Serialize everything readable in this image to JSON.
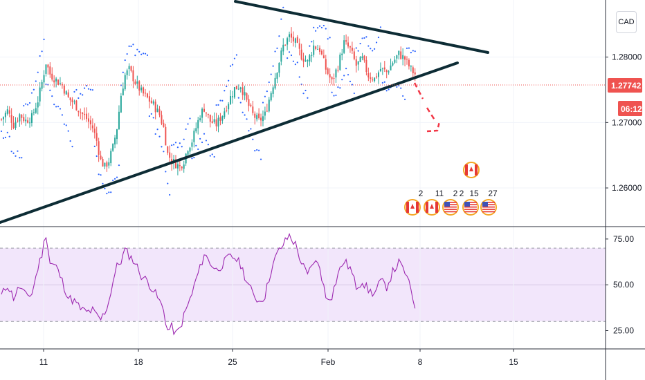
{
  "currency_button": "CAD",
  "price_axis": {
    "ticks": [
      "1.28000",
      "1.27000",
      "1.26000"
    ],
    "current_price": "1.27742",
    "countdown": "06:12"
  },
  "rsi_axis": {
    "ticks": [
      "75.00",
      "50.00",
      "25.00"
    ]
  },
  "time_axis": {
    "ticks": [
      "11",
      "18",
      "25",
      "Feb",
      "8",
      "15"
    ]
  },
  "event_labels": [
    "2",
    "11",
    "2",
    "2",
    "15",
    "27"
  ],
  "colors": {
    "up": "#26a69a",
    "down": "#ef5350",
    "trendline": "#0d2c35",
    "psar": "#2962ff",
    "rsi_line": "#9c27b0",
    "rsi_band": "#f2e6fb",
    "price_badge": "#ef5350",
    "annotation": "#f23645"
  },
  "chart_data": [
    {
      "type": "candlestick",
      "title": "",
      "x_ticks": [
        "11",
        "18",
        "25",
        "Feb",
        "8",
        "15"
      ],
      "y_ticks": [
        1.26,
        1.27,
        1.28
      ],
      "ylim": [
        1.2543,
        1.2882
      ],
      "last_price": 1.27742,
      "close_path": [
        [
          0,
          1.2705
        ],
        [
          3,
          1.2718
        ],
        [
          6,
          1.2697
        ],
        [
          9,
          1.2712
        ],
        [
          12,
          1.2703
        ],
        [
          15,
          1.2708
        ],
        [
          18,
          1.2734
        ],
        [
          20,
          1.2761
        ],
        [
          22,
          1.2792
        ],
        [
          24,
          1.2774
        ],
        [
          27,
          1.2765
        ],
        [
          30,
          1.2757
        ],
        [
          33,
          1.2737
        ],
        [
          36,
          1.2729
        ],
        [
          39,
          1.2716
        ],
        [
          42,
          1.2706
        ],
        [
          45,
          1.2692
        ],
        [
          47,
          1.2672
        ],
        [
          49,
          1.2642
        ],
        [
          51,
          1.2632
        ],
        [
          53,
          1.2642
        ],
        [
          55,
          1.2662
        ],
        [
          57,
          1.2692
        ],
        [
          59,
          1.2742
        ],
        [
          61,
          1.2772
        ],
        [
          63,
          1.2781
        ],
        [
          66,
          1.2762
        ],
        [
          69,
          1.2747
        ],
        [
          72,
          1.2737
        ],
        [
          75,
          1.2727
        ],
        [
          78,
          1.2712
        ],
        [
          80,
          1.2692
        ],
        [
          82,
          1.2652
        ],
        [
          84,
          1.2642
        ],
        [
          86,
          1.2637
        ],
        [
          88,
          1.2632
        ],
        [
          90,
          1.2642
        ],
        [
          92,
          1.2662
        ],
        [
          94,
          1.2672
        ],
        [
          96,
          1.2692
        ],
        [
          98,
          1.2712
        ],
        [
          100,
          1.2722
        ],
        [
          103,
          1.2702
        ],
        [
          106,
          1.2697
        ],
        [
          109,
          1.2712
        ],
        [
          112,
          1.2732
        ],
        [
          115,
          1.2752
        ],
        [
          118,
          1.2757
        ],
        [
          121,
          1.2732
        ],
        [
          124,
          1.2712
        ],
        [
          127,
          1.2702
        ],
        [
          130,
          1.2712
        ],
        [
          133,
          1.2747
        ],
        [
          136,
          1.2782
        ],
        [
          139,
          1.2817
        ],
        [
          142,
          1.2832
        ],
        [
          145,
          1.2822
        ],
        [
          148,
          1.2802
        ],
        [
          151,
          1.2792
        ],
        [
          154,
          1.2817
        ],
        [
          157,
          1.2812
        ],
        [
          160,
          1.2782
        ],
        [
          163,
          1.2762
        ],
        [
          166,
          1.2787
        ],
        [
          169,
          1.2822
        ],
        [
          172,
          1.2812
        ],
        [
          175,
          1.2787
        ],
        [
          178,
          1.2797
        ],
        [
          181,
          1.2772
        ],
        [
          184,
          1.2767
        ],
        [
          187,
          1.2782
        ],
        [
          190,
          1.2777
        ],
        [
          193,
          1.2792
        ],
        [
          196,
          1.2805
        ],
        [
          199,
          1.2797
        ],
        [
          202,
          1.2781
        ],
        [
          204,
          1.2774
        ]
      ]
    },
    {
      "type": "line",
      "title": "",
      "y_ticks": [
        25,
        50,
        75
      ],
      "ylim": [
        15,
        81
      ],
      "band": [
        30,
        70
      ],
      "midline": 50,
      "series": [
        {
          "values": [
            [
              0,
              44
            ],
            [
              3,
              50
            ],
            [
              6,
              43
            ],
            [
              9,
              49
            ],
            [
              12,
              44
            ],
            [
              15,
              45
            ],
            [
              18,
              59
            ],
            [
              20,
              67
            ],
            [
              22,
              78
            ],
            [
              24,
              62
            ],
            [
              27,
              60
            ],
            [
              30,
              52
            ],
            [
              33,
              43
            ],
            [
              36,
              41
            ],
            [
              39,
              37
            ],
            [
              42,
              35
            ],
            [
              45,
              36
            ],
            [
              47,
              33
            ],
            [
              49,
              31
            ],
            [
              51,
              35
            ],
            [
              53,
              41
            ],
            [
              55,
              52
            ],
            [
              57,
              60
            ],
            [
              59,
              63
            ],
            [
              61,
              69
            ],
            [
              63,
              66
            ],
            [
              66,
              62
            ],
            [
              69,
              55
            ],
            [
              72,
              52
            ],
            [
              75,
              47
            ],
            [
              78,
              41
            ],
            [
              80,
              36
            ],
            [
              82,
              25
            ],
            [
              84,
              27
            ],
            [
              86,
              23
            ],
            [
              88,
              26
            ],
            [
              90,
              33
            ],
            [
              92,
              39
            ],
            [
              94,
              45
            ],
            [
              96,
              53
            ],
            [
              98,
              59
            ],
            [
              100,
              67
            ],
            [
              103,
              62
            ],
            [
              106,
              58
            ],
            [
              109,
              61
            ],
            [
              112,
              65
            ],
            [
              115,
              65
            ],
            [
              118,
              61
            ],
            [
              121,
              52
            ],
            [
              124,
              45
            ],
            [
              127,
              41
            ],
            [
              130,
              44
            ],
            [
              133,
              58
            ],
            [
              136,
              67
            ],
            [
              139,
              72
            ],
            [
              142,
              77
            ],
            [
              145,
              72
            ],
            [
              148,
              62
            ],
            [
              151,
              55
            ],
            [
              154,
              63
            ],
            [
              157,
              60
            ],
            [
              160,
              43
            ],
            [
              163,
              44
            ],
            [
              166,
              56
            ],
            [
              169,
              63
            ],
            [
              172,
              59
            ],
            [
              175,
              49
            ],
            [
              178,
              52
            ],
            [
              181,
              47
            ],
            [
              184,
              45
            ],
            [
              187,
              52
            ],
            [
              190,
              49
            ],
            [
              193,
              57
            ],
            [
              196,
              62
            ],
            [
              199,
              57
            ],
            [
              202,
              47
            ],
            [
              204,
              38
            ]
          ]
        }
      ]
    }
  ]
}
